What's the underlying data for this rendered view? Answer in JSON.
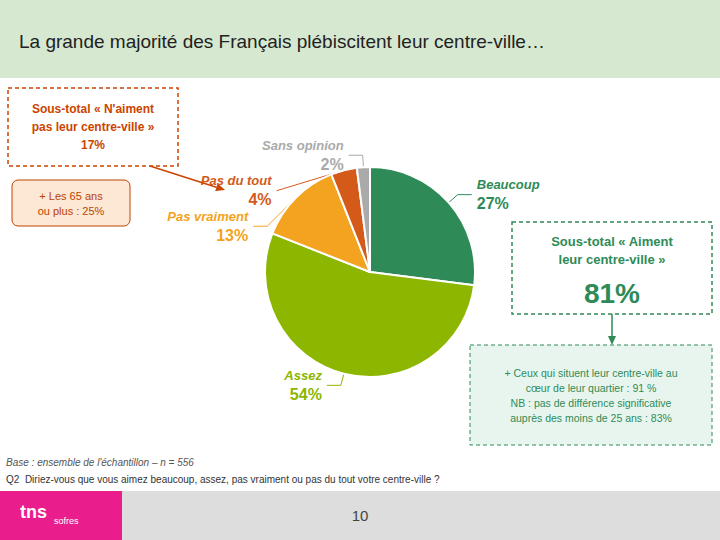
{
  "chart_data": {
    "type": "pie",
    "title": "La grande majorité des Français plébiscitent leur centre-ville…",
    "categories": [
      "Beaucoup",
      "Assez",
      "Pas vraiment",
      "Pas du tout",
      "Sans opinion"
    ],
    "values": [
      27,
      54,
      13,
      4,
      2
    ],
    "value_labels": [
      "27%",
      "54%",
      "13%",
      "4%",
      "2%"
    ],
    "colors": [
      "#2e8b57",
      "#8db600",
      "#f4a320",
      "#d45a1a",
      "#aaaaaa"
    ],
    "data_labels": true,
    "annotations": [
      "Sous-total « N'aiment\npas leur centre-ville »\n17%",
      "+ Les 65 ans\nou plus : 25%",
      "Sous-total « Aiment\nleur centre-ville »",
      "81%",
      "+ Ceux qui situent leur centre-ville au\ncœur de leur quartier : 91 %\nNB : pas de différence significative\nauprès des moins de 25 ans : 83%",
      "Base : ensemble de l'échantillon – n = 556",
      "Q2  Diriez-vous que vous aimez beaucoup, assez, pas vraiment ou pas du tout votre centre-ville ?",
      "10",
      "tns",
      "sofres"
    ]
  }
}
